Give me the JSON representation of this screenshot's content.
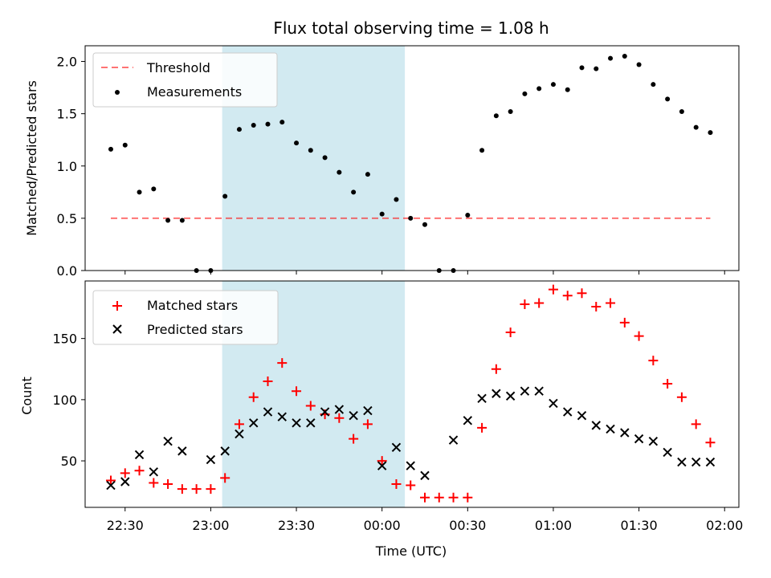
{
  "chart_data": [
    {
      "type": "scatter",
      "title": "Flux total observing time = 1.08 h",
      "xlabel": "",
      "ylabel": "Matched/Predicted stars",
      "ylim": [
        0,
        2.15
      ],
      "yticks": [
        "0.0",
        "0.5",
        "1.0",
        "1.5",
        "2.0"
      ],
      "shaded_interval": [
        "23:04",
        "00:08"
      ],
      "shaded_color": "#add8e6",
      "legend_position": "top-left",
      "threshold": {
        "name": "Threshold",
        "value": 0.5,
        "x_range": [
          "22:25",
          "01:55"
        ],
        "color": "#ff0000",
        "style": "dashed"
      },
      "series": [
        {
          "name": "Measurements",
          "marker": "dot",
          "color": "#000000",
          "x": [
            "22:25",
            "22:30",
            "22:35",
            "22:40",
            "22:45",
            "22:50",
            "22:55",
            "23:00",
            "23:05",
            "23:10",
            "23:15",
            "23:20",
            "23:25",
            "23:30",
            "23:35",
            "23:40",
            "23:45",
            "23:50",
            "23:55",
            "00:00",
            "00:05",
            "00:10",
            "00:15",
            "00:20",
            "00:25",
            "00:30",
            "00:35",
            "00:40",
            "00:45",
            "00:50",
            "00:55",
            "01:00",
            "01:05",
            "01:10",
            "01:15",
            "01:20",
            "01:25",
            "01:30",
            "01:35",
            "01:40",
            "01:45",
            "01:50",
            "01:55"
          ],
          "y": [
            1.16,
            1.2,
            0.75,
            0.78,
            0.48,
            0.48,
            0.0,
            0.0,
            0.71,
            1.35,
            1.39,
            1.4,
            1.42,
            1.22,
            1.15,
            1.08,
            0.94,
            0.75,
            0.92,
            0.54,
            0.68,
            0.5,
            0.44,
            0.0,
            0.0,
            0.53,
            1.15,
            1.48,
            1.52,
            1.69,
            1.74,
            1.78,
            1.73,
            1.94,
            1.93,
            2.03,
            2.05,
            1.97,
            1.78,
            1.64,
            1.52,
            1.37,
            1.32
          ]
        }
      ]
    },
    {
      "type": "scatter",
      "title": "",
      "xlabel": "Time (UTC)",
      "ylabel": "Count",
      "ylim": [
        12,
        197
      ],
      "yticks": [
        "50",
        "100",
        "150"
      ],
      "xlim": [
        "22:16",
        "02:05"
      ],
      "xticks": [
        "22:30",
        "23:00",
        "23:30",
        "00:00",
        "00:30",
        "01:00",
        "01:30",
        "02:00"
      ],
      "shaded_interval": [
        "23:04",
        "00:08"
      ],
      "shaded_color": "#add8e6",
      "legend_position": "top-left",
      "series": [
        {
          "name": "Matched stars",
          "marker": "plus",
          "color": "#ff0000",
          "x": [
            "22:25",
            "22:30",
            "22:35",
            "22:40",
            "22:45",
            "22:50",
            "22:55",
            "23:00",
            "23:05",
            "23:10",
            "23:15",
            "23:20",
            "23:25",
            "23:30",
            "23:35",
            "23:40",
            "23:45",
            "23:50",
            "23:55",
            "00:00",
            "00:05",
            "00:10",
            "00:15",
            "00:20",
            "00:25",
            "00:30",
            "00:35",
            "00:40",
            "00:45",
            "00:50",
            "00:55",
            "01:00",
            "01:05",
            "01:10",
            "01:15",
            "01:20",
            "01:25",
            "01:30",
            "01:35",
            "01:40",
            "01:45",
            "01:50",
            "01:55"
          ],
          "y": [
            34,
            40,
            42,
            32,
            31,
            27,
            27,
            27,
            36,
            80,
            102,
            115,
            130,
            107,
            95,
            88,
            85,
            68,
            80,
            50,
            31,
            30,
            20,
            20,
            20,
            20,
            77,
            125,
            155,
            178,
            179,
            190,
            185,
            187,
            176,
            179,
            163,
            152,
            132,
            113,
            102,
            80,
            65
          ]
        },
        {
          "name": "Predicted stars",
          "marker": "x",
          "color": "#000000",
          "x": [
            "22:25",
            "22:30",
            "22:35",
            "22:40",
            "22:45",
            "22:50",
            "23:00",
            "23:05",
            "23:10",
            "23:15",
            "23:20",
            "23:25",
            "23:30",
            "23:35",
            "23:40",
            "23:45",
            "23:50",
            "23:55",
            "00:00",
            "00:05",
            "00:10",
            "00:15",
            "00:25",
            "00:30",
            "00:35",
            "00:40",
            "00:45",
            "00:50",
            "00:55",
            "01:00",
            "01:05",
            "01:10",
            "01:15",
            "01:20",
            "01:25",
            "01:30",
            "01:35",
            "01:40",
            "01:45",
            "01:50",
            "01:55"
          ],
          "y": [
            30,
            33,
            55,
            41,
            66,
            58,
            51,
            58,
            72,
            81,
            90,
            86,
            81,
            81,
            90,
            92,
            87,
            91,
            46,
            61,
            46,
            38,
            67,
            83,
            101,
            105,
            103,
            107,
            107,
            97,
            90,
            87,
            79,
            76,
            73,
            68,
            66,
            57,
            49,
            49,
            49
          ]
        }
      ]
    }
  ]
}
